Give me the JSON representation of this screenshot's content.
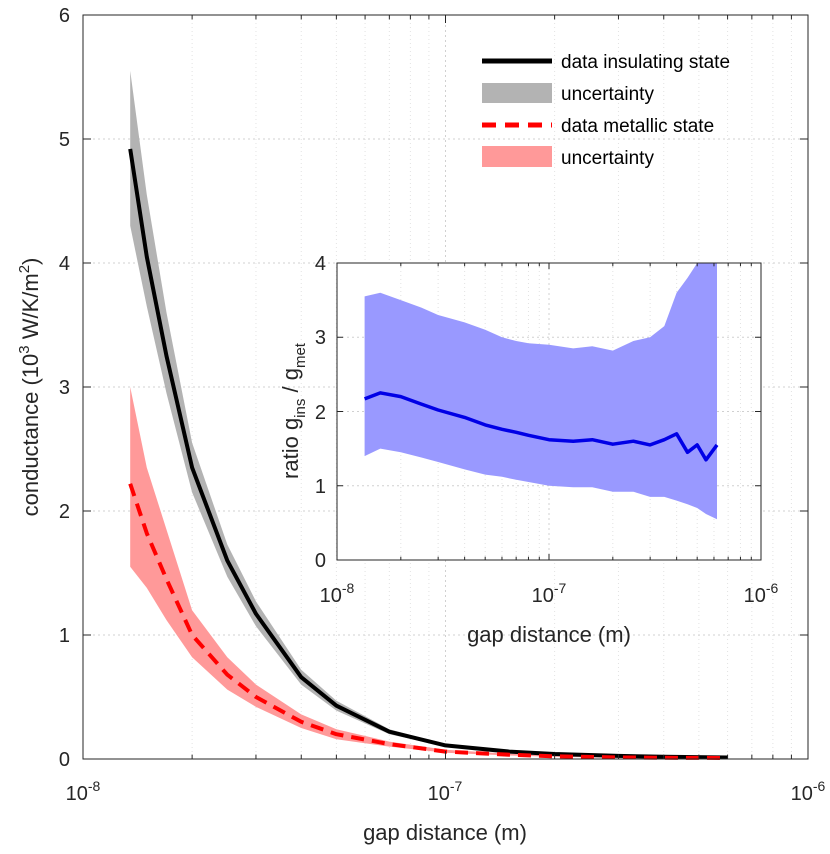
{
  "chart_data": [
    {
      "type": "line",
      "xscale": "log",
      "xlabel": "gap distance (m)",
      "ylabel": {
        "pre": "conductance (10",
        "sup1": "3",
        "mid": " W/K/m",
        "sup2": "2",
        "post": ")"
      },
      "xlim": [
        1e-08,
        1e-06
      ],
      "ylim": [
        0,
        6
      ],
      "xticks": [
        {
          "value": 1e-08,
          "base": "10",
          "exp": "-8"
        },
        {
          "value": 1e-07,
          "base": "10",
          "exp": "-7"
        },
        {
          "value": 1e-06,
          "base": "10",
          "exp": "-6"
        }
      ],
      "yticks": [
        {
          "value": 0,
          "label": "0"
        },
        {
          "value": 1,
          "label": "1"
        },
        {
          "value": 2,
          "label": "2"
        },
        {
          "value": 3,
          "label": "3"
        },
        {
          "value": 4,
          "label": "4"
        },
        {
          "value": 5,
          "label": "5"
        },
        {
          "value": 6,
          "label": "6"
        }
      ],
      "grid": true,
      "legend_position": "top-right",
      "series": [
        {
          "name": "data insulating state",
          "color": "#000000",
          "style": "solid",
          "x": [
            1.35e-08,
            1.5e-08,
            1.7e-08,
            2e-08,
            2.5e-08,
            3e-08,
            4e-08,
            5e-08,
            7e-08,
            1e-07,
            1.5e-07,
            2e-07,
            3e-07,
            4e-07,
            6e-07
          ],
          "y": [
            4.92,
            4.05,
            3.25,
            2.35,
            1.6,
            1.17,
            0.66,
            0.43,
            0.22,
            0.11,
            0.06,
            0.04,
            0.025,
            0.018,
            0.012
          ],
          "band_low": [
            4.3,
            3.65,
            2.95,
            2.15,
            1.47,
            1.07,
            0.6,
            0.39,
            0.2,
            0.1,
            0.055,
            0.036,
            0.022,
            0.015,
            0.01
          ],
          "band_high": [
            5.55,
            4.55,
            3.6,
            2.55,
            1.73,
            1.27,
            0.72,
            0.47,
            0.24,
            0.12,
            0.065,
            0.044,
            0.028,
            0.021,
            0.014
          ]
        },
        {
          "name": "data metallic state",
          "color": "#ff0000",
          "style": "dashed",
          "x": [
            1.35e-08,
            1.5e-08,
            1.7e-08,
            2e-08,
            2.5e-08,
            3e-08,
            4e-08,
            5e-08,
            7e-08,
            1e-07,
            1.5e-07,
            2e-07,
            3e-07,
            4e-07,
            6e-07
          ],
          "y": [
            2.22,
            1.82,
            1.45,
            1.0,
            0.68,
            0.5,
            0.3,
            0.2,
            0.12,
            0.06,
            0.035,
            0.022,
            0.013,
            0.01,
            0.008
          ],
          "band_low": [
            1.55,
            1.38,
            1.12,
            0.82,
            0.56,
            0.42,
            0.25,
            0.16,
            0.1,
            0.05,
            0.028,
            0.018,
            0.01,
            0.007,
            0.005
          ],
          "band_high": [
            3.0,
            2.35,
            1.85,
            1.2,
            0.82,
            0.6,
            0.36,
            0.24,
            0.14,
            0.075,
            0.042,
            0.027,
            0.016,
            0.012,
            0.01
          ]
        }
      ],
      "legend": [
        {
          "label": "data insulating state",
          "kind": "line",
          "color": "#000000"
        },
        {
          "label": "uncertainty",
          "kind": "patch",
          "color": "#b3b3b3"
        },
        {
          "label": "data metallic state",
          "kind": "dash",
          "color": "#ff0000"
        },
        {
          "label": "uncertainty",
          "kind": "patch",
          "color": "#ff9999"
        }
      ]
    },
    {
      "type": "line",
      "inset": true,
      "xscale": "log",
      "xlabel": "gap distance (m)",
      "ylabel": {
        "pre": "ratio g",
        "sub1": "ins",
        "mid": " / g",
        "sub2": "met"
      },
      "xlim": [
        1e-08,
        1e-06
      ],
      "ylim": [
        0,
        4
      ],
      "xticks": [
        {
          "value": 1e-08,
          "base": "10",
          "exp": "-8"
        },
        {
          "value": 1e-07,
          "base": "10",
          "exp": "-7"
        },
        {
          "value": 1e-06,
          "base": "10",
          "exp": "-6"
        }
      ],
      "yticks": [
        {
          "value": 0,
          "label": "0"
        },
        {
          "value": 1,
          "label": "1"
        },
        {
          "value": 2,
          "label": "2"
        },
        {
          "value": 3,
          "label": "3"
        },
        {
          "value": 4,
          "label": "4"
        }
      ],
      "grid": true,
      "series": [
        {
          "name": "ratio",
          "color": "#0000e6",
          "band_color": "#9999ff",
          "x": [
            1.35e-08,
            1.6e-08,
            2e-08,
            2.5e-08,
            3e-08,
            4e-08,
            5e-08,
            6e-08,
            7e-08,
            8e-08,
            1e-07,
            1.3e-07,
            1.6e-07,
            2e-07,
            2.5e-07,
            3e-07,
            3.5e-07,
            4e-07,
            4.5e-07,
            5e-07,
            5.5e-07,
            6.2e-07
          ],
          "y": [
            2.17,
            2.25,
            2.2,
            2.1,
            2.02,
            1.92,
            1.82,
            1.76,
            1.72,
            1.68,
            1.62,
            1.6,
            1.62,
            1.56,
            1.6,
            1.55,
            1.62,
            1.7,
            1.45,
            1.55,
            1.35,
            1.55
          ],
          "band_low": [
            1.4,
            1.5,
            1.45,
            1.38,
            1.32,
            1.22,
            1.15,
            1.12,
            1.08,
            1.05,
            1.0,
            0.98,
            0.98,
            0.92,
            0.92,
            0.85,
            0.85,
            0.8,
            0.75,
            0.7,
            0.62,
            0.55
          ],
          "band_high": [
            3.55,
            3.6,
            3.5,
            3.4,
            3.3,
            3.2,
            3.1,
            3.0,
            2.95,
            2.92,
            2.9,
            2.85,
            2.88,
            2.82,
            2.95,
            3.0,
            3.15,
            3.6,
            3.8,
            4.0,
            4.0,
            4.0
          ]
        }
      ]
    }
  ]
}
